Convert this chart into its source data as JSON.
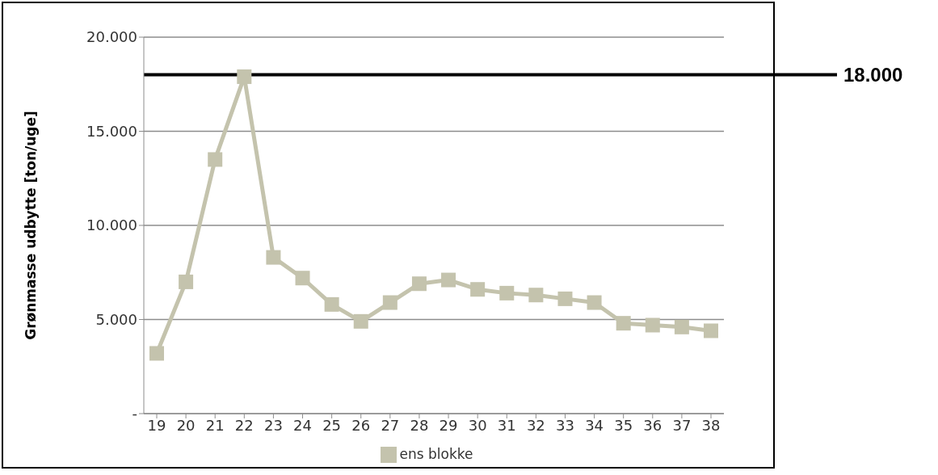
{
  "chart_data": {
    "type": "line",
    "ylabel": "Grønmasse udbytte [ton/uge]",
    "categories": [
      "19",
      "20",
      "21",
      "22",
      "23",
      "24",
      "25",
      "26",
      "27",
      "28",
      "29",
      "30",
      "31",
      "32",
      "33",
      "34",
      "35",
      "36",
      "37",
      "38"
    ],
    "series": [
      {
        "name": "ens blokke",
        "color": "#c4c3ad",
        "values": [
          3200,
          7000,
          13500,
          17900,
          8300,
          7200,
          5800,
          4900,
          5900,
          6900,
          7100,
          6600,
          6400,
          6300,
          6100,
          5900,
          4800,
          4700,
          4600,
          4400
        ]
      }
    ],
    "ylim": [
      0,
      20000
    ],
    "yticks": [
      {
        "value": 0,
        "label": "-"
      },
      {
        "value": 5000,
        "label": "5.000"
      },
      {
        "value": 10000,
        "label": "10.000"
      },
      {
        "value": 15000,
        "label": "15.000"
      },
      {
        "value": 20000,
        "label": "20.000"
      }
    ],
    "ref_lines": [
      {
        "axis": "y",
        "value": 18000,
        "label": "18.000",
        "color": "#000000"
      }
    ],
    "grid": "y",
    "legend": "bottom",
    "marker": "square",
    "line_style": "solid"
  }
}
